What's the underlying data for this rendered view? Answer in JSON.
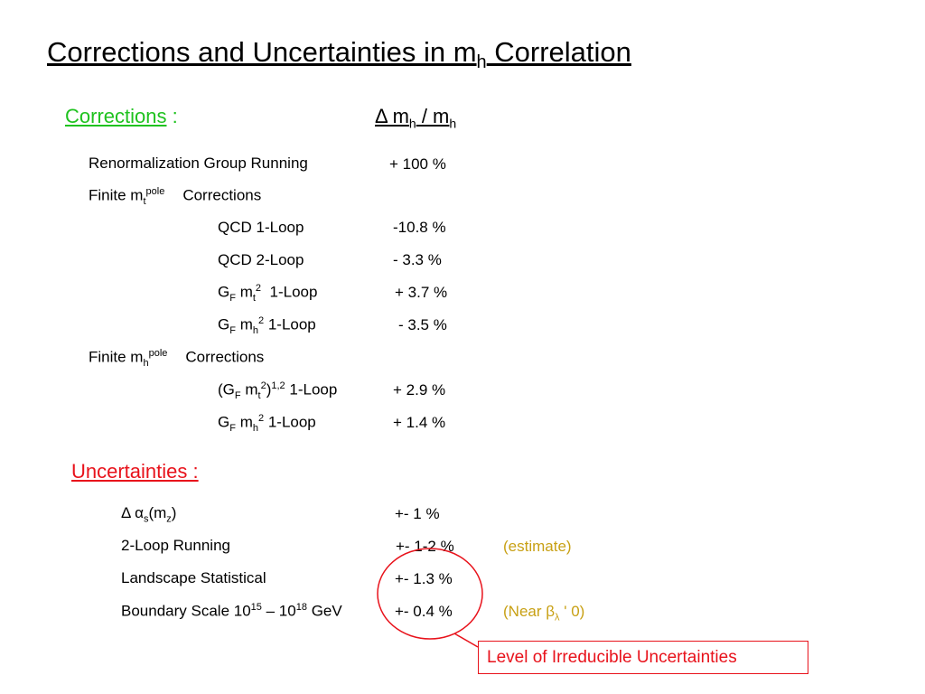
{
  "title": {
    "main": "Corrections and Uncertainties in m",
    "sub": "h",
    "rest": " Correlation"
  },
  "corrections": {
    "label": "Corrections",
    "colon": " :",
    "header": {
      "delta": "Δ m",
      "sub1": "h",
      "slash": " / m",
      "sub2": "h"
    },
    "rgr": {
      "label": "Renormalization Group Running",
      "value": "+ 100 %"
    },
    "finite_mt": {
      "pre": "Finite m",
      "sub": "t",
      "sup": "pole",
      "post": "Corrections"
    },
    "qcd1": {
      "label": "QCD 1-Loop",
      "value": "-10.8 %"
    },
    "qcd2": {
      "label": "QCD 2-Loop",
      "value": "- 3.3 %"
    },
    "gfmt2": {
      "g": "G",
      "gsub": "F",
      "m": " m",
      "msub": "t",
      "msup": "2",
      "loop": "  1-Loop",
      "value": "+ 3.7 %"
    },
    "gfmh2": {
      "g": "G",
      "gsub": "F",
      "m": " m",
      "msub": "h",
      "msup": "2",
      "loop": " 1-Loop",
      "value": "- 3.5 %"
    },
    "finite_mh": {
      "pre": "Finite m",
      "sub": "h",
      "sup": "pole",
      "post": "Corrections"
    },
    "gfmt2_12": {
      "open": "(G",
      "gsub": "F",
      "m": " m",
      "msub": "t",
      "msup": "2",
      "close": ")",
      "sup2": "1,2",
      "loop": " 1-Loop",
      "value": "+ 2.9 %"
    },
    "gfmh2_b": {
      "g": "G",
      "gsub": "F",
      "m": " m",
      "msub": "h",
      "msup": "2",
      "loop": " 1-Loop",
      "value": "+ 1.4 %"
    }
  },
  "uncertainties": {
    "label": "Uncertainties :",
    "alpha": {
      "pre": "Δ α",
      "sub": "s",
      "mid": "(m",
      "sub2": "z",
      "post": ")",
      "value": "+- 1 %"
    },
    "running": {
      "label": "2-Loop Running",
      "value": "+- 1-2 %",
      "note": "(estimate)"
    },
    "landscape": {
      "label": "Landscape Statistical",
      "value": "+- 1.3 %"
    },
    "boundary": {
      "pre": "Boundary Scale 10",
      "sup1": "15",
      "mid": " – 10",
      "sup2": "18",
      "post": " GeV",
      "value": "+- 0.4 %",
      "note_pre": "(Near β",
      "note_sub": "λ",
      "note_post": " ' 0)"
    }
  },
  "callout": "Level of Irreducible Uncertainties",
  "colors": {
    "green": "#1fc21f",
    "red": "#e8121b",
    "gold": "#c8a014"
  }
}
